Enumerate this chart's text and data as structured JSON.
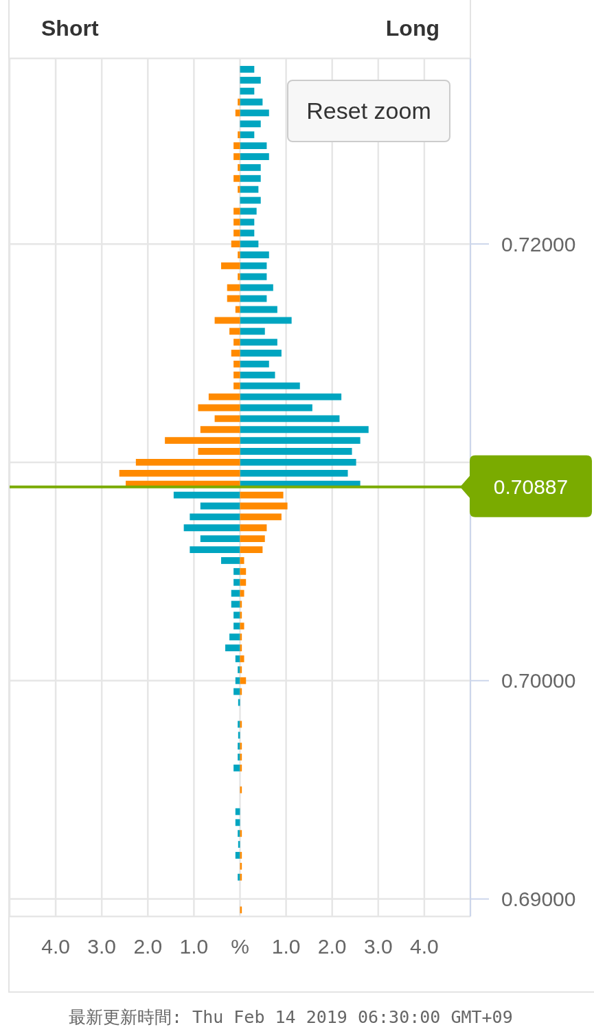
{
  "chart_data": {
    "type": "bar",
    "orientation": "horizontal",
    "stacked": true,
    "annotations": [
      "Short",
      "Long",
      "Reset zoom",
      "最新更新時間: Thu Feb 14 2019 06:30:00 GMT+09"
    ],
    "x": [
      0.728,
      0.7275,
      0.727,
      0.7265,
      0.726,
      0.7255,
      0.725,
      0.7245,
      0.724,
      0.7235,
      0.723,
      0.7225,
      0.722,
      0.7215,
      0.721,
      0.7205,
      0.72,
      0.7195,
      0.719,
      0.7185,
      0.718,
      0.7175,
      0.717,
      0.7165,
      0.716,
      0.7155,
      0.715,
      0.7145,
      0.714,
      0.7135,
      0.713,
      0.7125,
      0.712,
      0.7115,
      0.711,
      0.7105,
      0.71,
      0.7095,
      0.709,
      0.7085,
      0.708,
      0.7075,
      0.707,
      0.7065,
      0.706,
      0.7055,
      0.705,
      0.7045,
      0.704,
      0.7035,
      0.703,
      0.7025,
      0.702,
      0.7015,
      0.701,
      0.7005,
      0.7,
      0.6995,
      0.699,
      0.698,
      0.6975,
      0.697,
      0.6965,
      0.696,
      0.695,
      0.694,
      0.6935,
      0.693,
      0.6925,
      0.692,
      0.6915,
      0.691,
      0.6895
    ],
    "series": [
      {
        "color": "#00a5c0",
        "values": [
          0.31,
          0.45,
          0.31,
          0.49,
          0.63,
          0.45,
          0.31,
          0.58,
          0.63,
          0.45,
          0.45,
          0.4,
          0.45,
          0.36,
          0.31,
          0.31,
          0.4,
          0.63,
          0.58,
          0.58,
          0.72,
          0.58,
          0.81,
          1.12,
          0.54,
          0.81,
          0.9,
          0.63,
          0.76,
          1.3,
          2.2,
          1.57,
          2.16,
          2.79,
          2.61,
          2.43,
          2.52,
          2.34,
          2.61,
          -1.44,
          -0.86,
          -1.09,
          -1.22,
          -0.86,
          -1.09,
          -0.41,
          -0.14,
          -0.14,
          -0.19,
          -0.19,
          -0.14,
          -0.14,
          -0.23,
          -0.32,
          -0.1,
          -0.05,
          -0.1,
          -0.14,
          -0.04,
          -0.05,
          -0.04,
          -0.05,
          -0.05,
          -0.14,
          null,
          -0.1,
          -0.1,
          -0.05,
          -0.04,
          -0.1,
          null,
          -0.05,
          null
        ]
      },
      {
        "color": "#ff8a00",
        "values": [
          null,
          null,
          null,
          -0.05,
          -0.1,
          null,
          -0.05,
          -0.14,
          -0.14,
          -0.05,
          -0.14,
          -0.05,
          null,
          -0.14,
          -0.14,
          -0.14,
          -0.19,
          -0.05,
          -0.41,
          -0.05,
          -0.28,
          -0.28,
          -0.1,
          -0.55,
          -0.23,
          -0.14,
          -0.19,
          -0.14,
          -0.14,
          -0.14,
          -0.68,
          -0.91,
          -0.55,
          -0.86,
          -1.63,
          -0.91,
          -2.26,
          -2.62,
          -2.48,
          0.94,
          1.03,
          0.9,
          0.58,
          0.54,
          0.49,
          0.09,
          0.13,
          0.13,
          0.09,
          0.04,
          0.04,
          0.09,
          0.04,
          0.04,
          0.09,
          0.04,
          0.13,
          0.04,
          null,
          0.04,
          null,
          0.04,
          0.04,
          0.04,
          0.04,
          null,
          null,
          0.04,
          null,
          0.04,
          0.04,
          0.04,
          0.04
        ]
      }
    ],
    "xlim": [
      -5,
      5
    ],
    "xticks": [
      {
        "value": -4,
        "label": "4.0"
      },
      {
        "value": -3,
        "label": "3.0"
      },
      {
        "value": -2,
        "label": "2.0"
      },
      {
        "value": -1,
        "label": "1.0"
      },
      {
        "value": 0,
        "label": "%"
      },
      {
        "value": 1,
        "label": "1.0"
      },
      {
        "value": 2,
        "label": "2.0"
      },
      {
        "value": 3,
        "label": "3.0"
      },
      {
        "value": 4,
        "label": "4.0"
      }
    ],
    "ylim": [
      0.6892,
      0.7285
    ],
    "yticks": [
      {
        "value": 0.69,
        "label": "0.69000"
      },
      {
        "value": 0.7,
        "label": "0.70000"
      },
      {
        "value": 0.71,
        "label": null
      },
      {
        "value": 0.72,
        "label": "0.72000"
      }
    ],
    "grid": true,
    "ref_lines": [
      {
        "axis": "y",
        "value": 0.70887,
        "label": "0.70887",
        "color": "#7aab00"
      }
    ]
  }
}
